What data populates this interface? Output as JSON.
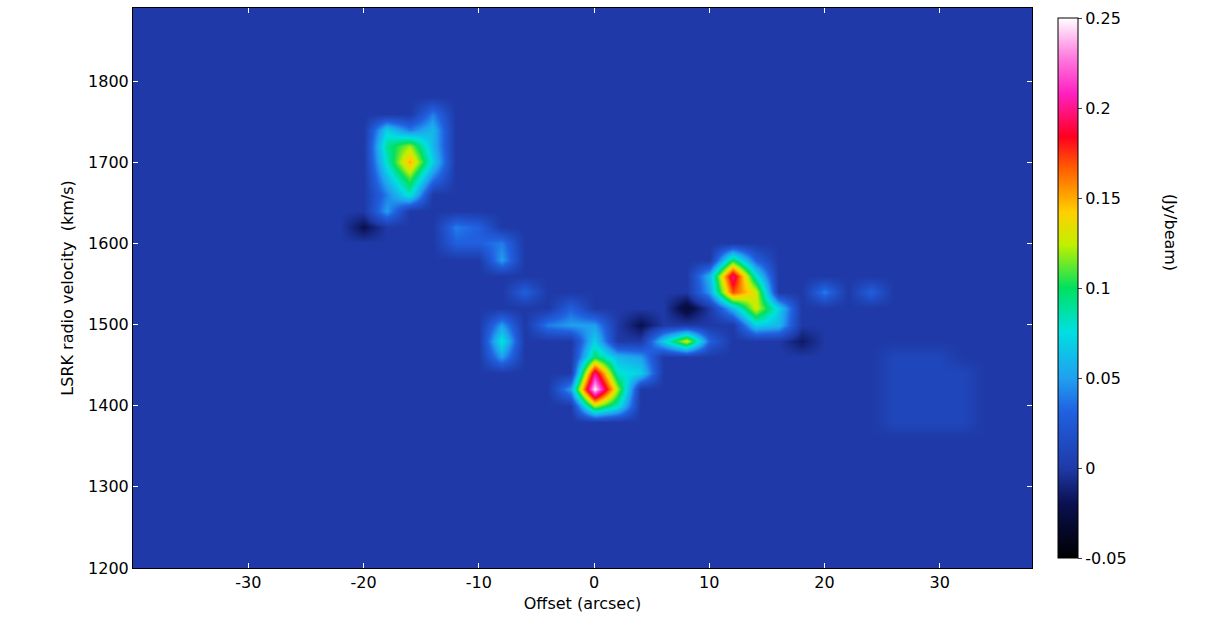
{
  "chart_data": {
    "type": "heatmap",
    "x_label": "Offset (arcsec)",
    "y_label": "LSRK radio velocity  (km/s)",
    "colorbar_label": "(Jy/beam)",
    "xlim": [
      -40,
      38
    ],
    "ylim": [
      1200,
      1890
    ],
    "xticks": [
      -30,
      -20,
      -10,
      0,
      10,
      20,
      30
    ],
    "yticks": [
      1200,
      1300,
      1400,
      1500,
      1600,
      1700,
      1800
    ],
    "colorbar_lim": [
      -0.05,
      0.25
    ],
    "colorbar_ticks": [
      -0.05,
      0,
      0.05,
      0.1,
      0.15,
      0.2,
      0.25
    ],
    "grid": false,
    "x": [
      -38,
      -36,
      -34,
      -32,
      -30,
      -28,
      -26,
      -24,
      -22,
      -20,
      -18,
      -16,
      -14,
      -12,
      -10,
      -8,
      -6,
      -4,
      -2,
      0,
      2,
      4,
      6,
      8,
      10,
      12,
      14,
      16,
      18,
      20,
      22,
      24,
      26,
      28,
      30,
      32,
      34,
      36,
      38
    ],
    "y": [
      1200,
      1220,
      1240,
      1260,
      1280,
      1300,
      1320,
      1340,
      1360,
      1380,
      1400,
      1420,
      1440,
      1460,
      1480,
      1500,
      1520,
      1540,
      1560,
      1580,
      1600,
      1620,
      1640,
      1660,
      1680,
      1700,
      1720,
      1740,
      1760,
      1780,
      1800,
      1820,
      1840,
      1860,
      1880
    ],
    "cells": [
      [
        0,
        0,
        0,
        0,
        0,
        0,
        0,
        0,
        0,
        0,
        0,
        0,
        0,
        0,
        0,
        0,
        0,
        0,
        0,
        0,
        0,
        0,
        0,
        0,
        0,
        0,
        0,
        0,
        0,
        0,
        0,
        0,
        0,
        0,
        0,
        0,
        0,
        0,
        0
      ],
      [
        0,
        0,
        0,
        0,
        0,
        0,
        0,
        0,
        0,
        0,
        0,
        0,
        0,
        0,
        0,
        0,
        0,
        0,
        0,
        0,
        0,
        0,
        0,
        0,
        0,
        0,
        0,
        0,
        0,
        0,
        0,
        0,
        0,
        0,
        0,
        0,
        0,
        0,
        0
      ],
      [
        0,
        0,
        0,
        0,
        0,
        0,
        0,
        0,
        0,
        0,
        0,
        0,
        0,
        0,
        0,
        0,
        0,
        0,
        0,
        0,
        0,
        0,
        0,
        0,
        0,
        0,
        0,
        0,
        0,
        0,
        0,
        0,
        0,
        0,
        0,
        0,
        0,
        0,
        0
      ],
      [
        0,
        0,
        0,
        0,
        0,
        0,
        0,
        0,
        0,
        0,
        0,
        0,
        0,
        0,
        0,
        0,
        0,
        0,
        0,
        0,
        0,
        0,
        0,
        0,
        0,
        0,
        0,
        0,
        0,
        0,
        0,
        0,
        0,
        0,
        0,
        0,
        0,
        0,
        0
      ],
      [
        0,
        0,
        0,
        0,
        0,
        0,
        0,
        0,
        0,
        0,
        0,
        0,
        0,
        0,
        0,
        0,
        0,
        0,
        0,
        0,
        0,
        0,
        0,
        0,
        0,
        0,
        0,
        0,
        0,
        0,
        0,
        0,
        0,
        0,
        0,
        0,
        0,
        0,
        0
      ],
      [
        0,
        0,
        0,
        0,
        0,
        0,
        0,
        0,
        0,
        0,
        0,
        0,
        0,
        0,
        0,
        0,
        0,
        0,
        0,
        0,
        0,
        0,
        0,
        0,
        0,
        0,
        0,
        0,
        0,
        0,
        0,
        0,
        0,
        0,
        0,
        0,
        0,
        0,
        0
      ],
      [
        0,
        0,
        0,
        0,
        0,
        0,
        0,
        0,
        0,
        0,
        0,
        0,
        0,
        0,
        0,
        0,
        0,
        0,
        0,
        0,
        0,
        0,
        0,
        0,
        0,
        0,
        0,
        0,
        0,
        0,
        0,
        0,
        0,
        0,
        0,
        0,
        0,
        0,
        0
      ],
      [
        0,
        0,
        0,
        0,
        0,
        0,
        0,
        0,
        0,
        0,
        0,
        0,
        0,
        0,
        0,
        0,
        0,
        0,
        0,
        0,
        0,
        0,
        0,
        0,
        0,
        0,
        0,
        0,
        0,
        0,
        0,
        0,
        0,
        0,
        0,
        0,
        0,
        0,
        0
      ],
      [
        0,
        0,
        0,
        0,
        0,
        0,
        0,
        0,
        0,
        0,
        0,
        0,
        0,
        0,
        0,
        0,
        0,
        0,
        0,
        0,
        0,
        0,
        0,
        0,
        0,
        0,
        0,
        0,
        0,
        0,
        0,
        0,
        0,
        0,
        0,
        0,
        0,
        0,
        0
      ],
      [
        0,
        0,
        0,
        0,
        0,
        0,
        0,
        0,
        0,
        0,
        0,
        0,
        0,
        0,
        0,
        0,
        0,
        0,
        0,
        0,
        0,
        0,
        0,
        0,
        0,
        0,
        0,
        0,
        0,
        0,
        0,
        0,
        0.01,
        0.01,
        0.01,
        0.01,
        0,
        0,
        0
      ],
      [
        0,
        0,
        0,
        0,
        0,
        0,
        0,
        0,
        0,
        0,
        0,
        0,
        0,
        0,
        0,
        0,
        0,
        0,
        0,
        0.12,
        0.08,
        0,
        0,
        0,
        0,
        0,
        0,
        0,
        0,
        0,
        0,
        0,
        0.01,
        0.01,
        0.01,
        0.01,
        0,
        0,
        0
      ],
      [
        0,
        0,
        0,
        0,
        0,
        0,
        0,
        0,
        0,
        0,
        0,
        0,
        0,
        0,
        0,
        0,
        0,
        0,
        0.05,
        0.25,
        0.12,
        0,
        0,
        0,
        0,
        0,
        0,
        0,
        0,
        0,
        0,
        0,
        0.01,
        0.01,
        0.01,
        0.01,
        0,
        0,
        0
      ],
      [
        0,
        0,
        0,
        0,
        0,
        0,
        0,
        0,
        0,
        0,
        0,
        0,
        0,
        0,
        0,
        0,
        0,
        0,
        0,
        0.2,
        0.08,
        0.07,
        0,
        0,
        0,
        0,
        0,
        0,
        0,
        0,
        0,
        0,
        0.01,
        0.01,
        0.01,
        0.01,
        0,
        0,
        0
      ],
      [
        0,
        0,
        0,
        0,
        0,
        0,
        0,
        0,
        0,
        0,
        0,
        0,
        0,
        0,
        0,
        0.05,
        0,
        0,
        0,
        0.1,
        0.06,
        0.05,
        0,
        0,
        0,
        0,
        0,
        0,
        0,
        0,
        0,
        0,
        0.01,
        0.01,
        0.01,
        0,
        0,
        0,
        0
      ],
      [
        0,
        0,
        0,
        0,
        0,
        0,
        0,
        0,
        0,
        0,
        0,
        0,
        0,
        0,
        0,
        0.08,
        0,
        0,
        0,
        0.07,
        0,
        0,
        0.07,
        0.13,
        0.03,
        0,
        0,
        0,
        -0.015,
        0,
        0,
        0,
        0,
        0,
        0,
        0,
        0,
        0,
        0
      ],
      [
        0,
        0,
        0,
        0,
        0,
        0,
        0,
        0,
        0,
        0,
        0,
        0,
        0,
        0,
        0,
        0.05,
        0,
        0.04,
        0.05,
        0.05,
        0,
        -0.02,
        0,
        0,
        0,
        0,
        0.07,
        0.06,
        0,
        0,
        0,
        0,
        0,
        0,
        0,
        0,
        0,
        0,
        0
      ],
      [
        0,
        0,
        0,
        0,
        0,
        0,
        0,
        0,
        0,
        0,
        0,
        0,
        0,
        0,
        0,
        0,
        0,
        0,
        0.03,
        0,
        0,
        0,
        0,
        -0.03,
        0,
        0.06,
        0.13,
        0.07,
        0,
        0,
        0,
        0,
        0,
        0,
        0,
        0,
        0,
        0,
        0
      ],
      [
        0,
        0,
        0,
        0,
        0,
        0,
        0,
        0,
        0,
        0,
        0,
        0,
        0,
        0,
        0,
        0,
        0.03,
        0,
        0,
        0,
        0,
        0,
        0,
        0,
        0.05,
        0.17,
        0.13,
        0,
        0,
        0.04,
        0,
        0.03,
        0,
        0,
        0,
        0,
        0,
        0,
        0
      ],
      [
        0,
        0,
        0,
        0,
        0,
        0,
        0,
        0,
        0,
        0,
        0,
        0,
        0,
        0,
        0,
        0,
        0,
        0,
        0,
        0,
        0,
        0,
        0,
        0,
        0.06,
        0.2,
        0.08,
        0,
        0,
        0,
        0,
        0,
        0,
        0,
        0,
        0,
        0,
        0,
        0
      ],
      [
        0,
        0,
        0,
        0,
        0,
        0,
        0,
        0,
        0,
        0,
        0,
        0,
        0,
        0,
        0,
        0.05,
        0,
        0,
        0,
        0,
        0,
        0,
        0,
        0,
        0,
        0.1,
        0.03,
        0,
        0,
        0,
        0,
        0,
        0,
        0,
        0,
        0,
        0,
        0,
        0
      ],
      [
        0,
        0,
        0,
        0,
        0,
        0,
        0,
        0,
        0,
        0,
        0,
        0,
        0,
        0.03,
        0.03,
        0.04,
        0,
        0,
        0,
        0,
        0,
        0,
        0,
        0,
        0,
        0,
        0,
        0,
        0,
        0,
        0,
        0,
        0,
        0,
        0,
        0,
        0,
        0,
        0
      ],
      [
        0,
        0,
        0,
        0,
        0,
        0,
        0,
        0,
        0,
        -0.02,
        0,
        0,
        0,
        0.04,
        0.03,
        0,
        0,
        0,
        0,
        0,
        0,
        0,
        0,
        0,
        0,
        0,
        0,
        0,
        0,
        0,
        0,
        0,
        0,
        0,
        0,
        0,
        0,
        0,
        0
      ],
      [
        0,
        0,
        0,
        0,
        0,
        0,
        0,
        0,
        0,
        0,
        0.05,
        0,
        0,
        0,
        0,
        0,
        0,
        0,
        0,
        0,
        0,
        0,
        0,
        0,
        0,
        0,
        0,
        0,
        0,
        0,
        0,
        0,
        0,
        0,
        0,
        0,
        0,
        0,
        0
      ],
      [
        0,
        0,
        0,
        0,
        0,
        0,
        0,
        0,
        0,
        0,
        0.04,
        0.08,
        0,
        0,
        0,
        0,
        0,
        0,
        0,
        0,
        0,
        0,
        0,
        0,
        0,
        0,
        0,
        0,
        0,
        0,
        0,
        0,
        0,
        0,
        0,
        0,
        0,
        0,
        0
      ],
      [
        0,
        0,
        0,
        0,
        0,
        0,
        0,
        0,
        0,
        0,
        0.06,
        0.11,
        0.04,
        0,
        0,
        0,
        0,
        0,
        0,
        0,
        0,
        0,
        0,
        0,
        0,
        0,
        0,
        0,
        0,
        0,
        0,
        0,
        0,
        0,
        0,
        0,
        0,
        0,
        0
      ],
      [
        0,
        0,
        0,
        0,
        0,
        0,
        0,
        0,
        0,
        0,
        0.08,
        0.15,
        0.07,
        0,
        0,
        0,
        0,
        0,
        0,
        0,
        0,
        0,
        0,
        0,
        0,
        0,
        0,
        0,
        0,
        0,
        0,
        0,
        0,
        0,
        0,
        0,
        0,
        0,
        0
      ],
      [
        0,
        0,
        0,
        0,
        0,
        0,
        0,
        0,
        0,
        0,
        0.09,
        0.12,
        0.06,
        0,
        0,
        0,
        0,
        0,
        0,
        0,
        0,
        0,
        0,
        0,
        0,
        0,
        0,
        0,
        0,
        0,
        0,
        0,
        0,
        0,
        0,
        0,
        0,
        0,
        0
      ],
      [
        0,
        0,
        0,
        0,
        0,
        0,
        0,
        0,
        0,
        0,
        0.07,
        0.04,
        0.06,
        0,
        0,
        0,
        0,
        0,
        0,
        0,
        0,
        0,
        0,
        0,
        0,
        0,
        0,
        0,
        0,
        0,
        0,
        0,
        0,
        0,
        0,
        0,
        0,
        0,
        0
      ],
      [
        0,
        0,
        0,
        0,
        0,
        0,
        0,
        0,
        0,
        0,
        0,
        0,
        0.04,
        0,
        0,
        0,
        0,
        0,
        0,
        0,
        0,
        0,
        0,
        0,
        0,
        0,
        0,
        0,
        0,
        0,
        0,
        0,
        0,
        0,
        0,
        0,
        0,
        0,
        0
      ],
      [
        0,
        0,
        0,
        0,
        0,
        0,
        0,
        0,
        0,
        0,
        0,
        0,
        0,
        0,
        0,
        0,
        0,
        0,
        0,
        0,
        0,
        0,
        0,
        0,
        0,
        0,
        0,
        0,
        0,
        0,
        0,
        0,
        0,
        0,
        0,
        0,
        0,
        0,
        0
      ],
      [
        0,
        0,
        0,
        0,
        0,
        0,
        0,
        0,
        0,
        0,
        0,
        0,
        0,
        0,
        0,
        0,
        0,
        0,
        0,
        0,
        0,
        0,
        0,
        0,
        0,
        0,
        0,
        0,
        0,
        0,
        0,
        0,
        0,
        0,
        0,
        0,
        0,
        0,
        0
      ],
      [
        0,
        0,
        0,
        0,
        0,
        0,
        0,
        0,
        0,
        0,
        0,
        0,
        0,
        0,
        0,
        0,
        0,
        0,
        0,
        0,
        0,
        0,
        0,
        0,
        0,
        0,
        0,
        0,
        0,
        0,
        0,
        0,
        0,
        0,
        0,
        0,
        0,
        0,
        0
      ],
      [
        0,
        0,
        0,
        0,
        0,
        0,
        0,
        0,
        0,
        0,
        0,
        0,
        0,
        0,
        0,
        0,
        0,
        0,
        0,
        0,
        0,
        0,
        0,
        0,
        0,
        0,
        0,
        0,
        0,
        0,
        0,
        0,
        0,
        0,
        0,
        0,
        0,
        0,
        0
      ],
      [
        0,
        0,
        0,
        0,
        0,
        0,
        0,
        0,
        0,
        0,
        0,
        0,
        0,
        0,
        0,
        0,
        0,
        0,
        0,
        0,
        0,
        0,
        0,
        0,
        0,
        0,
        0,
        0,
        0,
        0,
        0,
        0,
        0,
        0,
        0,
        0,
        0,
        0,
        0
      ],
      [
        0,
        0,
        0,
        0,
        0,
        0,
        0,
        0,
        0,
        0,
        0,
        0,
        0,
        0,
        0,
        0,
        0,
        0,
        0,
        0,
        0,
        0,
        0,
        0,
        0,
        0,
        0,
        0,
        0,
        0,
        0,
        0,
        0,
        0,
        0,
        0,
        0,
        0,
        0
      ]
    ]
  }
}
